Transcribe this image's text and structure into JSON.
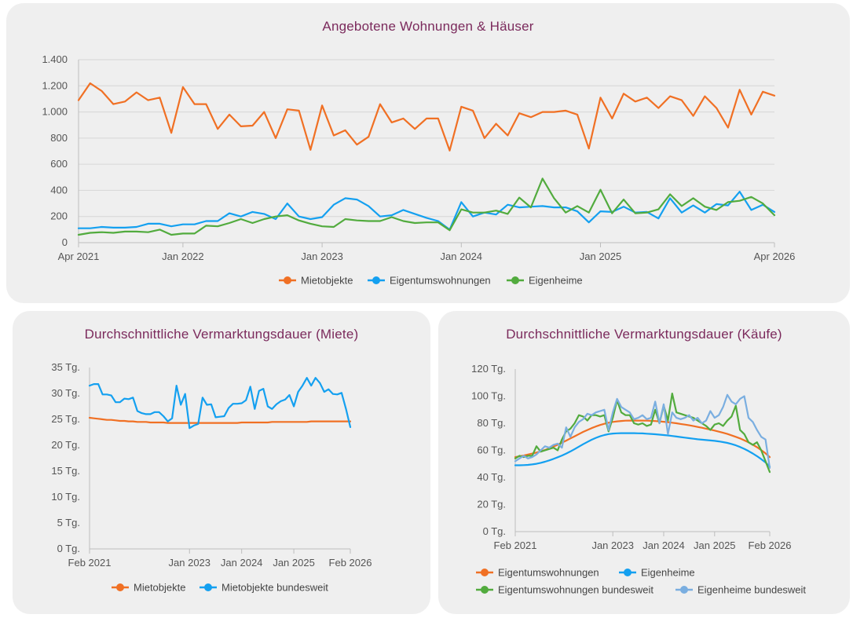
{
  "colors": {
    "orange": "#f07024",
    "blue": "#14a0f0",
    "green": "#52ab3e",
    "lightblue": "#7aaee0",
    "title": "#7b2a5c",
    "grid": "#d6d6d6",
    "card": "#efefef"
  },
  "chart_data": [
    {
      "id": "offers",
      "type": "line",
      "title": "Angebotene Wohnungen & Häuser",
      "x_start": "Apr 2021",
      "x_end": "Apr 2026",
      "ylim": [
        0,
        1400
      ],
      "y_ticks": [
        {
          "v": 0,
          "label": "0"
        },
        {
          "v": 200,
          "label": "200"
        },
        {
          "v": 400,
          "label": "400"
        },
        {
          "v": 600,
          "label": "600"
        },
        {
          "v": 800,
          "label": "800"
        },
        {
          "v": 1000,
          "label": "1.000"
        },
        {
          "v": 1200,
          "label": "1.200"
        },
        {
          "v": 1400,
          "label": "1.400"
        }
      ],
      "x_ticks": [
        {
          "i": 0,
          "label": "Apr 2021"
        },
        {
          "i": 9,
          "label": "Jan 2022"
        },
        {
          "i": 21,
          "label": "Jan 2023"
        },
        {
          "i": 33,
          "label": "Jan 2024"
        },
        {
          "i": 45,
          "label": "Jan 2025"
        },
        {
          "i": 60,
          "label": "Apr 2026"
        }
      ],
      "grid": true,
      "legend": "bottom",
      "series": [
        {
          "name": "Mietobjekte",
          "color": "#f07024",
          "marker": true,
          "values": [
            1090,
            1220,
            1160,
            1060,
            1080,
            1150,
            1090,
            1110,
            840,
            1190,
            1060,
            1060,
            870,
            980,
            890,
            895,
            1000,
            800,
            1020,
            1010,
            710,
            1050,
            820,
            860,
            750,
            810,
            1060,
            920,
            950,
            870,
            950,
            950,
            705,
            1040,
            1010,
            800,
            910,
            820,
            990,
            960,
            1000,
            1000,
            1010,
            980,
            720,
            1110,
            950,
            1140,
            1080,
            1110,
            1030,
            1120,
            1090,
            970,
            1120,
            1030,
            880,
            1170,
            980,
            1155,
            1125
          ]
        },
        {
          "name": "Eigentumswohnungen",
          "color": "#14a0f0",
          "marker": true,
          "values": [
            110,
            110,
            120,
            115,
            115,
            120,
            145,
            145,
            125,
            140,
            140,
            165,
            165,
            225,
            200,
            235,
            220,
            180,
            300,
            200,
            180,
            195,
            290,
            340,
            330,
            280,
            200,
            210,
            250,
            220,
            190,
            165,
            100,
            310,
            200,
            230,
            215,
            290,
            270,
            275,
            280,
            270,
            270,
            240,
            155,
            240,
            235,
            275,
            230,
            235,
            185,
            340,
            230,
            285,
            230,
            295,
            285,
            390,
            250,
            290,
            235
          ]
        },
        {
          "name": "Eigenheime",
          "color": "#52ab3e",
          "marker": true,
          "values": [
            60,
            75,
            80,
            75,
            85,
            85,
            80,
            100,
            60,
            70,
            70,
            130,
            125,
            150,
            180,
            150,
            180,
            200,
            210,
            170,
            145,
            125,
            120,
            180,
            170,
            165,
            165,
            195,
            165,
            150,
            155,
            155,
            95,
            255,
            230,
            230,
            245,
            220,
            345,
            270,
            490,
            340,
            230,
            280,
            230,
            405,
            225,
            330,
            225,
            230,
            255,
            370,
            280,
            340,
            275,
            250,
            310,
            320,
            350,
            300,
            210
          ]
        }
      ]
    },
    {
      "id": "rent-duration",
      "type": "line",
      "title": "Durchschnittliche Vermarktungsdauer (Miete)",
      "x_start": "Feb 2021",
      "x_end": "Feb 2026",
      "ylim": [
        0,
        35
      ],
      "y_ticks": [
        {
          "v": 0,
          "label": "0 Tg."
        },
        {
          "v": 5,
          "label": "5 Tg."
        },
        {
          "v": 10,
          "label": "10 Tg."
        },
        {
          "v": 15,
          "label": "15 Tg."
        },
        {
          "v": 20,
          "label": "20 Tg."
        },
        {
          "v": 25,
          "label": "25 Tg."
        },
        {
          "v": 30,
          "label": "30 Tg."
        },
        {
          "v": 35,
          "label": "35 Tg."
        }
      ],
      "x_ticks": [
        {
          "i": 0,
          "label": "Feb 2021"
        },
        {
          "i": 23,
          "label": "Jan 2023"
        },
        {
          "i": 35,
          "label": "Jan 2024"
        },
        {
          "i": 47,
          "label": "Jan 2025"
        },
        {
          "i": 60,
          "label": "Feb 2026"
        }
      ],
      "grid": false,
      "legend": "bottom",
      "series": [
        {
          "name": "Mietobjekte",
          "color": "#f07024",
          "marker": false,
          "values": [
            25.3,
            25.2,
            25.1,
            25.0,
            24.9,
            24.9,
            24.8,
            24.7,
            24.7,
            24.6,
            24.6,
            24.5,
            24.5,
            24.5,
            24.4,
            24.4,
            24.4,
            24.4,
            24.3,
            24.3,
            24.3,
            24.3,
            24.3,
            24.3,
            24.3,
            24.3,
            24.3,
            24.3,
            24.3,
            24.3,
            24.3,
            24.3,
            24.3,
            24.3,
            24.3,
            24.4,
            24.4,
            24.4,
            24.4,
            24.4,
            24.4,
            24.4,
            24.5,
            24.5,
            24.5,
            24.5,
            24.5,
            24.5,
            24.5,
            24.5,
            24.5,
            24.6,
            24.6,
            24.6,
            24.6,
            24.6,
            24.6,
            24.6,
            24.6,
            24.6,
            24.6
          ]
        },
        {
          "name": "Mietobjekte bundesweit",
          "color": "#14a0f0",
          "marker": false,
          "values": [
            31.5,
            31.8,
            31.8,
            29.8,
            29.8,
            29.6,
            28.3,
            28.3,
            29.0,
            28.9,
            29.2,
            26.6,
            26.2,
            26.0,
            26.0,
            26.4,
            26.4,
            25.6,
            24.6,
            25.2,
            31.5,
            27.8,
            29.9,
            23.3,
            23.8,
            24.1,
            29.2,
            27.8,
            27.9,
            25.4,
            25.5,
            25.6,
            27.2,
            28.0,
            28.0,
            28.1,
            28.7,
            31.3,
            27.0,
            30.5,
            30.9,
            27.5,
            27.0,
            27.9,
            28.5,
            28.8,
            29.7,
            27.5,
            30.3,
            31.5,
            33.0,
            31.5,
            33.0,
            32.0,
            30.3,
            30.8,
            29.9,
            29.8,
            30.1,
            27.0,
            23.5
          ]
        }
      ]
    },
    {
      "id": "buy-duration",
      "type": "line",
      "title": "Durchschnittliche Vermarktungsdauer (Käufe)",
      "x_start": "Feb 2021",
      "x_end": "Feb 2026",
      "ylim": [
        0,
        120
      ],
      "y_ticks": [
        {
          "v": 0,
          "label": "0 Tg."
        },
        {
          "v": 20,
          "label": "20 Tg."
        },
        {
          "v": 40,
          "label": "40 Tg."
        },
        {
          "v": 60,
          "label": "60 Tg."
        },
        {
          "v": 80,
          "label": "80 Tg."
        },
        {
          "v": 100,
          "label": "100 Tg."
        },
        {
          "v": 120,
          "label": "120 Tg."
        }
      ],
      "x_ticks": [
        {
          "i": 0,
          "label": "Feb 2021"
        },
        {
          "i": 23,
          "label": "Jan 2023"
        },
        {
          "i": 35,
          "label": "Jan 2024"
        },
        {
          "i": 47,
          "label": "Jan 2025"
        },
        {
          "i": 60,
          "label": "Feb 2026"
        }
      ],
      "grid": false,
      "legend": "bottom",
      "series": [
        {
          "name": "Eigentumswohnungen",
          "color": "#f07024",
          "marker": false,
          "values": [
            55.0,
            55.6,
            56.2,
            56.9,
            57.6,
            58.4,
            59.3,
            60.3,
            61.4,
            62.7,
            64.1,
            65.6,
            67.2,
            68.8,
            70.4,
            72.0,
            73.6,
            75.0,
            76.4,
            77.6,
            78.7,
            79.6,
            80.4,
            81.0,
            81.4,
            81.7,
            81.9,
            82.0,
            82.0,
            82.0,
            82.0,
            81.9,
            81.8,
            81.6,
            81.4,
            81.1,
            80.8,
            80.4,
            80.0,
            79.5,
            79.0,
            78.5,
            77.9,
            77.3,
            76.7,
            76.0,
            75.3,
            74.6,
            73.8,
            73.0,
            72.1,
            71.1,
            70.0,
            68.8,
            67.4,
            65.9,
            64.2,
            62.3,
            60.2,
            57.8,
            55.0
          ]
        },
        {
          "name": "Eigenheime",
          "color": "#14a0f0",
          "marker": false,
          "values": [
            49.0,
            49.0,
            49.1,
            49.3,
            49.6,
            50.1,
            50.8,
            51.6,
            52.6,
            53.7,
            54.9,
            56.2,
            57.6,
            59.2,
            60.9,
            62.7,
            64.5,
            66.2,
            67.8,
            69.2,
            70.4,
            71.3,
            72.0,
            72.4,
            72.6,
            72.7,
            72.7,
            72.7,
            72.7,
            72.6,
            72.5,
            72.3,
            72.1,
            71.9,
            71.6,
            71.3,
            71.0,
            70.6,
            70.2,
            69.8,
            69.4,
            69.0,
            68.6,
            68.2,
            67.9,
            67.6,
            67.3,
            67.0,
            66.6,
            66.1,
            65.5,
            64.7,
            63.7,
            62.5,
            61.1,
            59.5,
            57.7,
            55.7,
            53.5,
            51.1,
            48.0
          ]
        },
        {
          "name": "Eigentumswohnungen bundesweit",
          "color": "#52ab3e",
          "marker": false,
          "values": [
            54,
            56,
            55,
            56,
            56,
            63,
            59,
            60,
            61,
            62,
            60,
            68,
            74,
            76,
            80,
            86,
            85,
            82,
            86,
            86,
            85,
            86,
            74,
            84,
            97,
            88,
            86,
            86,
            80,
            79,
            80,
            78,
            79,
            90,
            80,
            93,
            82,
            102,
            88,
            87,
            86,
            85,
            84,
            82,
            80,
            78,
            75,
            79,
            80,
            78,
            82,
            85,
            93,
            75,
            72,
            66,
            64,
            66,
            60,
            52,
            44
          ]
        },
        {
          "name": "Eigenheime bundesweit",
          "color": "#7aaee0",
          "marker": false,
          "values": [
            52,
            54,
            56,
            54,
            55,
            57,
            60,
            63,
            62,
            64,
            65,
            62,
            77,
            70,
            77,
            81,
            83,
            87,
            86,
            88,
            89,
            90,
            75,
            88,
            98,
            92,
            90,
            88,
            83,
            84,
            86,
            83,
            84,
            96,
            80,
            94,
            72,
            88,
            84,
            83,
            84,
            86,
            82,
            84,
            80,
            82,
            89,
            84,
            86,
            92,
            101,
            96,
            94,
            98,
            100,
            84,
            81,
            75,
            70,
            68,
            47
          ]
        }
      ]
    }
  ]
}
